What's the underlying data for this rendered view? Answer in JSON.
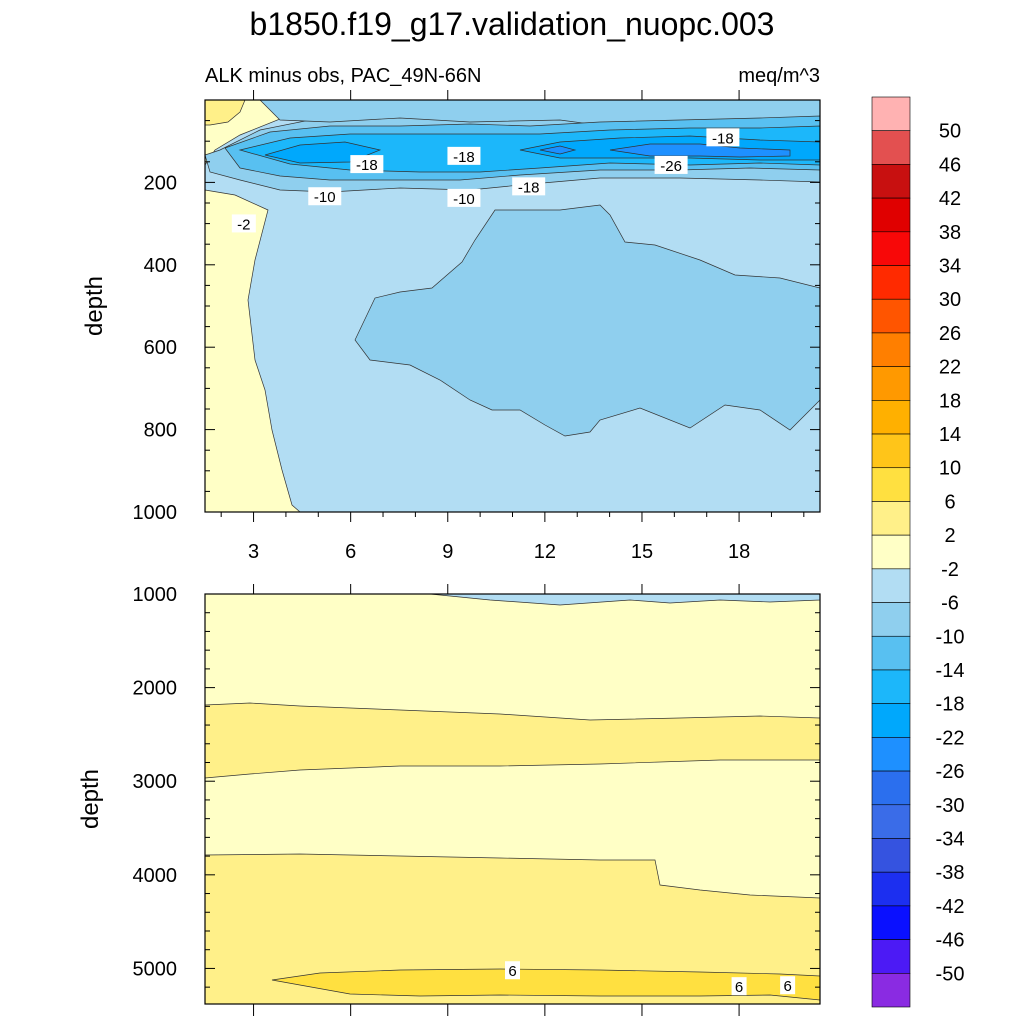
{
  "title": "b1850.f19_g17.validation_nuopc.003",
  "chart_data": [
    {
      "type": "contour",
      "panel": "upper",
      "subtitle_left": "ALK minus obs, PAC_49N-66N",
      "subtitle_right": "meq/m^3",
      "xlabel": "",
      "ylabel": "depth",
      "x_ticks": [
        "3",
        "6",
        "9",
        "12",
        "15",
        "18"
      ],
      "xlim": [
        1.5,
        20.5
      ],
      "y_ticks": [
        "200",
        "400",
        "600",
        "800",
        "1000"
      ],
      "ylim": [
        1000,
        0
      ],
      "contour_labels": [
        {
          "text": "-18",
          "x": 6.5,
          "y": 158
        },
        {
          "text": "-18",
          "x": 9.5,
          "y": 138
        },
        {
          "text": "-18",
          "x": 11.5,
          "y": 212
        },
        {
          "text": "-26",
          "x": 15.9,
          "y": 160
        },
        {
          "text": "-18",
          "x": 17.5,
          "y": 93
        },
        {
          "text": "-10",
          "x": 5.2,
          "y": 236
        },
        {
          "text": "-10",
          "x": 9.5,
          "y": 240
        },
        {
          "text": "-2",
          "x": 2.7,
          "y": 302
        }
      ]
    },
    {
      "type": "contour",
      "panel": "lower",
      "xlabel": "",
      "ylabel": "depth",
      "y_ticks": [
        "1000",
        "2000",
        "3000",
        "4000",
        "5000"
      ],
      "ylim": [
        5380,
        1000
      ],
      "xlim": [
        1.5,
        20.5
      ],
      "contour_labels": [
        {
          "text": "6",
          "x": 11.0,
          "y": 5030
        },
        {
          "text": "6",
          "x": 18.0,
          "y": 5200
        },
        {
          "text": "6",
          "x": 19.5,
          "y": 5190
        }
      ]
    }
  ],
  "colorbar": {
    "labels": [
      "50",
      "46",
      "42",
      "38",
      "34",
      "30",
      "26",
      "22",
      "18",
      "14",
      "10",
      "6",
      "2",
      "-2",
      "-6",
      "-10",
      "-14",
      "-18",
      "-22",
      "-26",
      "-30",
      "-34",
      "-38",
      "-42",
      "-46",
      "-50"
    ],
    "colors": [
      "#ffb2b2",
      "#e35050",
      "#c81010",
      "#e00000",
      "#f80808",
      "#ff2a00",
      "#ff5500",
      "#ff7f00",
      "#ff9900",
      "#ffb000",
      "#ffc519",
      "#ffe040",
      "#fff089",
      "#ffffc6",
      "#b2ddf3",
      "#8fcfee",
      "#58c0f1",
      "#1cb7fa",
      "#00a8fc",
      "#1e90ff",
      "#2b6fee",
      "#3a6ce8",
      "#3553e0",
      "#1c2ff0",
      "#0a10ff",
      "#4c1af5",
      "#8a2be2"
    ]
  },
  "fill_colors": {
    "fill_n2": "#ffffc6",
    "fill_n6": "#b2ddf3",
    "fill_n10": "#8fcfee",
    "fill_n14": "#58c0f1",
    "fill_n18": "#1cb7fa",
    "fill_n22": "#00a8fc",
    "fill_n26": "#1e90ff",
    "fill_p2": "#fff089",
    "fill_p6": "#ffe040",
    "fill_p10": "#ffc519"
  }
}
